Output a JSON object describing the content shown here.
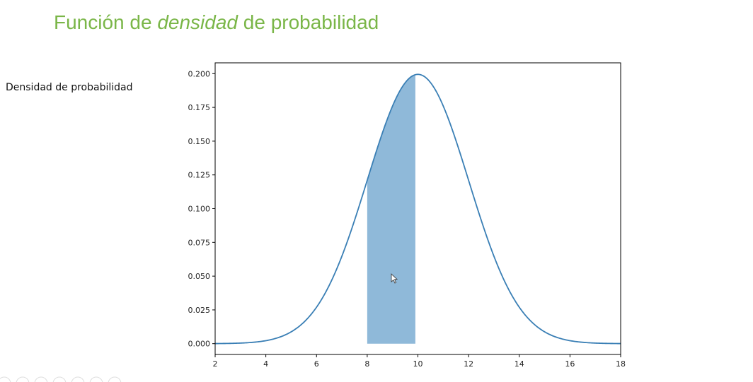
{
  "slide": {
    "title_part1": "Función de ",
    "title_emph": "densidad",
    "title_part2": " de probabilidad",
    "side_label": "Densidad de probabilidad",
    "title_color": "#7ab648"
  },
  "chart_data": {
    "type": "line",
    "title": "",
    "xlabel": "",
    "ylabel": "",
    "xlim": [
      2,
      18
    ],
    "ylim": [
      -0.008,
      0.208
    ],
    "xticks": [
      2,
      4,
      6,
      8,
      10,
      12,
      14,
      16,
      18
    ],
    "yticks": [
      0.0,
      0.025,
      0.05,
      0.075,
      0.1,
      0.125,
      0.15,
      0.175,
      0.2
    ],
    "ytick_labels": [
      "0.000",
      "0.025",
      "0.050",
      "0.075",
      "0.100",
      "0.125",
      "0.150",
      "0.175",
      "0.200"
    ],
    "grid": false,
    "series": [
      {
        "distribution": "normal",
        "mean": 10,
        "std": 2,
        "color": "#3a7fb5"
      }
    ],
    "shaded_region": {
      "from": 8,
      "to": 9.9,
      "color": "#8fb9d9"
    }
  }
}
